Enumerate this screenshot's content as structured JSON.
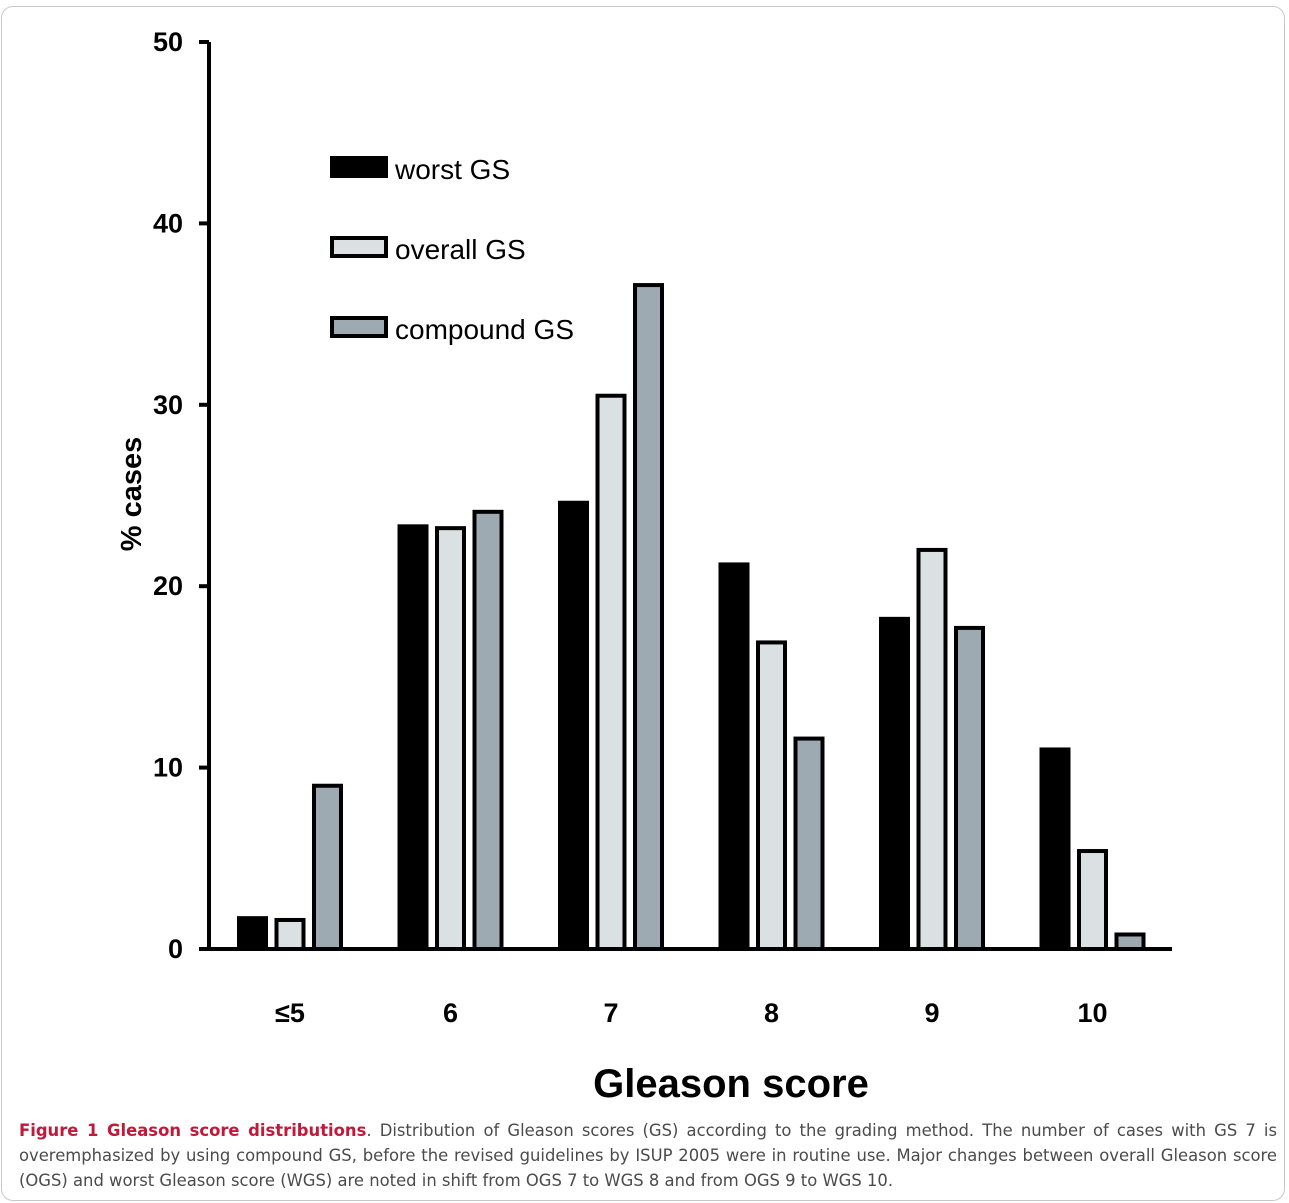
{
  "chart_data": {
    "type": "bar",
    "categories": [
      "≤5",
      "6",
      "7",
      "8",
      "9",
      "10"
    ],
    "series": [
      {
        "name": "worst GS",
        "color": "#000000",
        "values": [
          1.7,
          23.3,
          24.6,
          21.2,
          18.2,
          11.0
        ]
      },
      {
        "name": "overall GS",
        "color": "#dbe1e3",
        "values": [
          1.6,
          23.2,
          30.5,
          16.9,
          22.0,
          5.4
        ]
      },
      {
        "name": "compound GS",
        "color": "#9eaab2",
        "values": [
          9.0,
          24.1,
          36.6,
          11.6,
          17.7,
          0.8
        ]
      }
    ],
    "xlabel": "Gleason score",
    "ylabel": "% cases",
    "ylim": [
      0,
      50
    ],
    "yticks": [
      0,
      10,
      20,
      30,
      40,
      50
    ],
    "grid": false,
    "legend_position": "top-left"
  },
  "caption": {
    "label": "Figure 1 Gleason score distributions",
    "punct": ".",
    "text": " Distribution of Gleason scores (GS) according to the grading method. The number of cases with GS 7 is overemphasized by using compound GS, before the revised guidelines by ISUP 2005 were in routine use. Major changes between overall Gleason score (OGS) and worst Gleason score (WGS) are noted in shift from OGS 7 to WGS 8 and from OGS 9 to WGS 10."
  }
}
